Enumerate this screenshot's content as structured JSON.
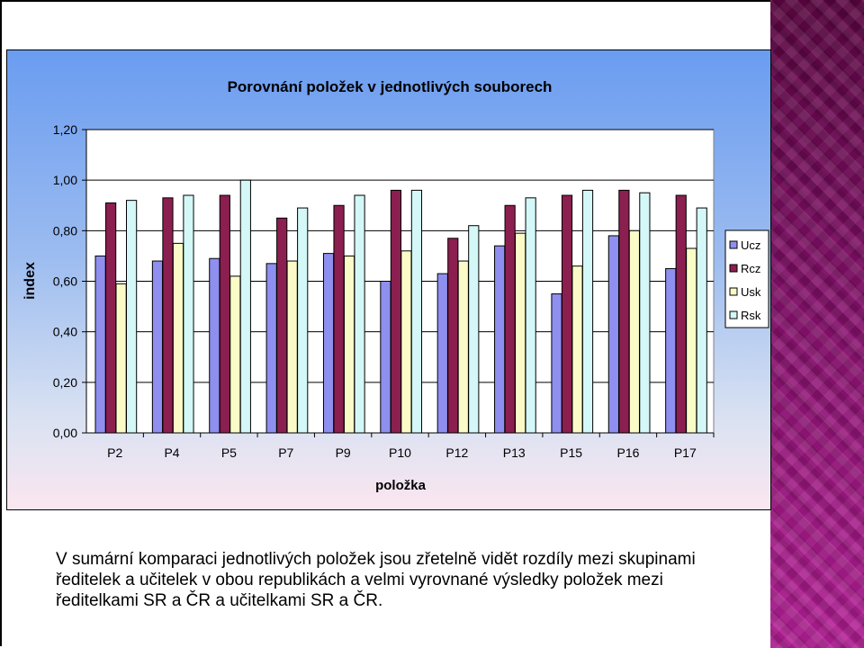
{
  "chart_data": {
    "type": "bar",
    "title": "Porovnání položek v jednotlivých souborech",
    "xlabel": "položka",
    "ylabel": "index",
    "ylim": [
      0,
      1.2
    ],
    "yticks": [
      "0,00",
      "0,20",
      "0,40",
      "0,60",
      "0,80",
      "1,00",
      "1,20"
    ],
    "categories": [
      "P2",
      "P4",
      "P5",
      "P7",
      "P9",
      "P10",
      "P12",
      "P13",
      "P15",
      "P16",
      "P17"
    ],
    "legend_position": "right",
    "series": [
      {
        "name": "Ucz",
        "color": "#8f8fef",
        "values": [
          0.7,
          0.68,
          0.69,
          0.67,
          0.71,
          0.6,
          0.63,
          0.74,
          0.55,
          0.78,
          0.65
        ]
      },
      {
        "name": "Rcz",
        "color": "#8b1f4f",
        "values": [
          0.91,
          0.93,
          0.94,
          0.85,
          0.9,
          0.96,
          0.77,
          0.9,
          0.94,
          0.96,
          0.94
        ]
      },
      {
        "name": "Usk",
        "color": "#fbfbc8",
        "values": [
          0.59,
          0.75,
          0.62,
          0.68,
          0.7,
          0.72,
          0.68,
          0.79,
          0.66,
          0.8,
          0.73
        ]
      },
      {
        "name": "Rsk",
        "color": "#d4f7f7",
        "values": [
          0.92,
          0.94,
          1.0,
          0.89,
          0.94,
          0.96,
          0.82,
          0.93,
          0.96,
          0.95,
          0.89
        ]
      }
    ]
  },
  "caption": {
    "line1": "V sumární komparaci jednotlivých položek jsou zřetelně vidět rozdíly mezi skupinami",
    "line2": "ředitelek a učitelek v obou republikách a velmi vyrovnané výsledky položek mezi",
    "line3": "ředitelkami SR a ČR a učitelkami SR a ČR."
  }
}
